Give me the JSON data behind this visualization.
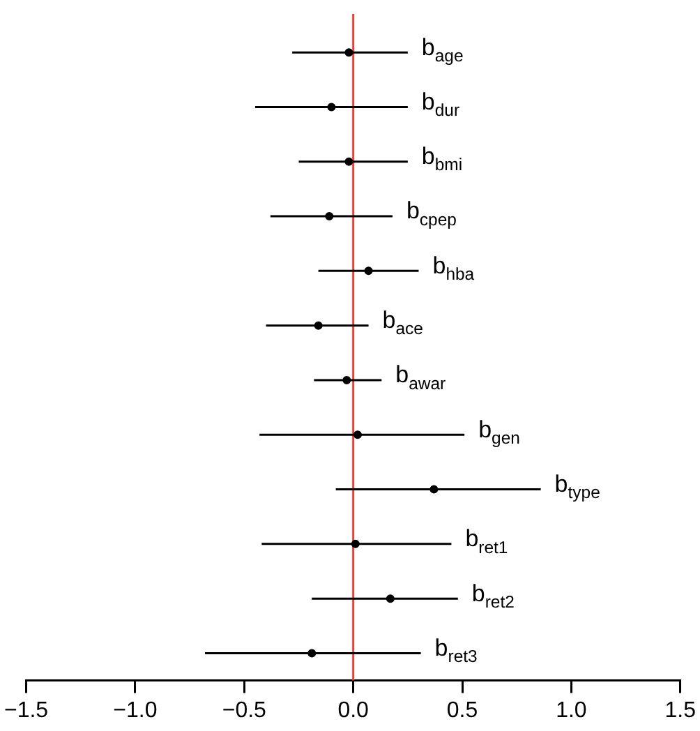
{
  "chart_data": {
    "type": "scatter",
    "orientation": "horizontal",
    "color": "#000000",
    "marker": "circle",
    "grid": false,
    "legend": false,
    "tick_labels": "x",
    "categories": [
      "b$_{age}$",
      "b$_{dur}$",
      "b$_{bmi}$",
      "b$_{cpep}$",
      "b$_{hba}$",
      "b$_{ace}$",
      "b$_{awar}$",
      "b$_{gen}$",
      "b$_{type}$",
      "b$_{ret1}$",
      "b$_{ret2}$",
      "b$_{ret3}$"
    ],
    "values": [
      -0.02,
      -0.1,
      -0.02,
      -0.11,
      0.07,
      -0.16,
      -0.03,
      0.02,
      0.37,
      0.01,
      0.17,
      -0.19
    ],
    "errors": [
      [
        -0.28,
        0.25
      ],
      [
        -0.45,
        0.25
      ],
      [
        -0.25,
        0.25
      ],
      [
        -0.38,
        0.18
      ],
      [
        -0.16,
        0.3
      ],
      [
        -0.4,
        0.07
      ],
      [
        -0.18,
        0.13
      ],
      [
        -0.43,
        0.51
      ],
      [
        -0.08,
        0.86
      ],
      [
        -0.42,
        0.45
      ],
      [
        -0.19,
        0.48
      ],
      [
        -0.68,
        0.31
      ]
    ],
    "xlim": [
      -1.5,
      1.5
    ],
    "xticks": [
      {
        "value": -1.5,
        "label": "−1.5"
      },
      {
        "value": -1,
        "label": "−1.0"
      },
      {
        "value": -0.5,
        "label": "−0.5"
      },
      {
        "value": 0,
        "label": "0.0"
      },
      {
        "value": 0.5,
        "label": "0.5"
      },
      {
        "value": 1,
        "label": "1.0"
      },
      {
        "value": 1.5,
        "label": "1.5"
      }
    ],
    "ref_lines": [
      {
        "axis": "x",
        "value": 0,
        "color": "#e8413a"
      }
    ]
  }
}
